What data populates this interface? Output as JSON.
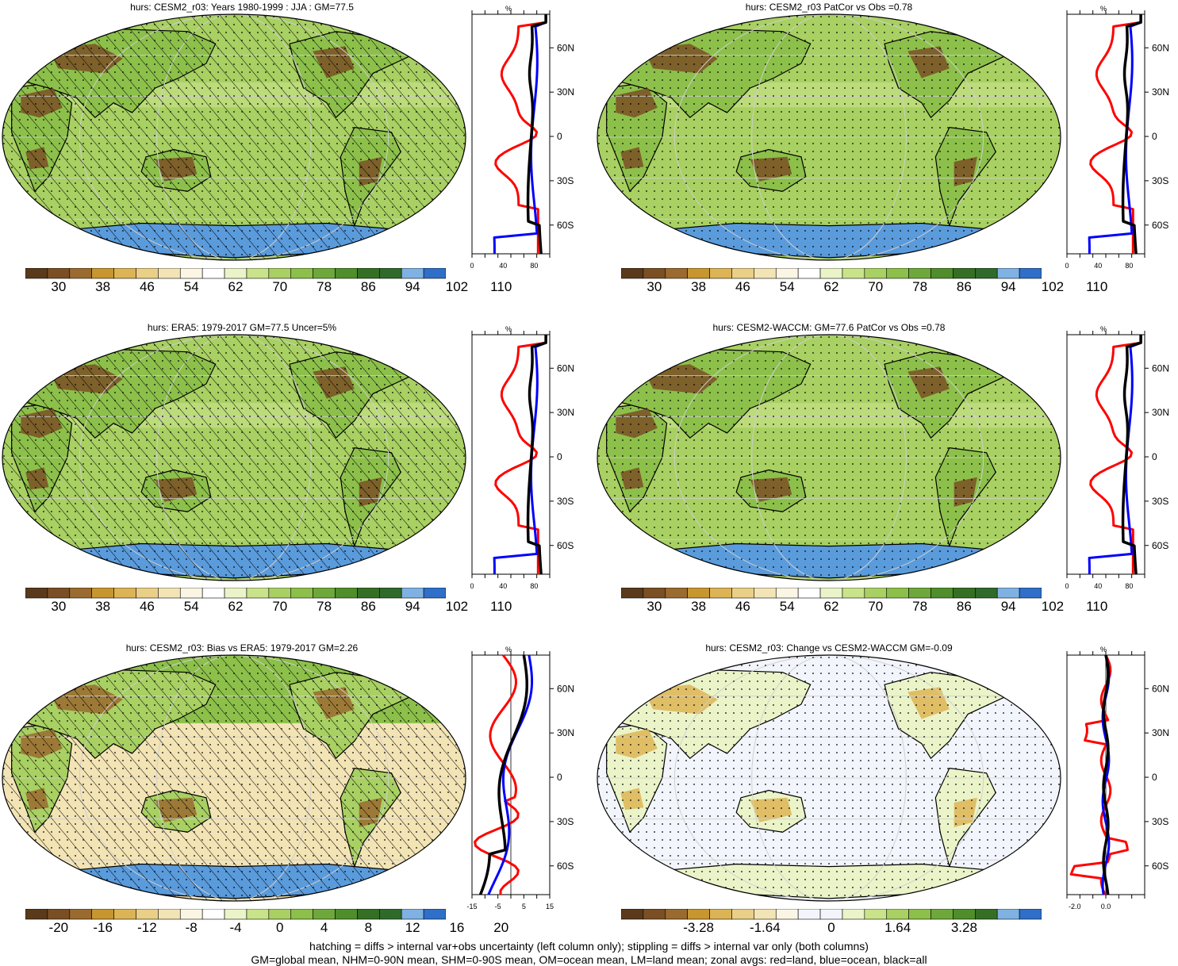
{
  "panels": [
    {
      "id": "p1",
      "title": "hurs: CESM2_r03: Years 1980-1999 : JJA : GM=77.5",
      "kind": "abs",
      "hatch": true,
      "colorbar_labels": [
        "30",
        "38",
        "46",
        "54",
        "62",
        "70",
        "78",
        "86",
        "94",
        "102",
        "110"
      ],
      "zonal": {
        "xlim": [
          0,
          100
        ],
        "xticks": [
          "0",
          "40",
          "80"
        ],
        "unit": "%",
        "lat_ticks": [
          "60N",
          "30N",
          "0",
          "30S",
          "60S"
        ]
      }
    },
    {
      "id": "p2",
      "title": "hurs: CESM2_r03 PatCor vs Obs =0.78",
      "kind": "abs",
      "hatch": false,
      "colorbar_labels": [
        "30",
        "38",
        "46",
        "54",
        "62",
        "70",
        "78",
        "86",
        "94",
        "102",
        "110"
      ],
      "zonal": {
        "xlim": [
          0,
          100
        ],
        "xticks": [
          "0",
          "40",
          "80"
        ],
        "unit": "%",
        "lat_ticks": [
          "60N",
          "30N",
          "0",
          "30S",
          "60S"
        ]
      }
    },
    {
      "id": "p3",
      "title": "hurs: ERA5: 1979-2017 GM=77.5 Uncer=5%",
      "kind": "abs",
      "hatch": true,
      "colorbar_labels": [
        "30",
        "38",
        "46",
        "54",
        "62",
        "70",
        "78",
        "86",
        "94",
        "102",
        "110"
      ],
      "zonal": {
        "xlim": [
          0,
          100
        ],
        "xticks": [
          "0",
          "40",
          "80"
        ],
        "unit": "%",
        "lat_ticks": [
          "60N",
          "30N",
          "0",
          "30S",
          "60S"
        ]
      }
    },
    {
      "id": "p4",
      "title": "hurs: CESM2-WACCM: GM=77.6 PatCor vs Obs =0.78",
      "kind": "abs",
      "hatch": false,
      "colorbar_labels": [
        "30",
        "38",
        "46",
        "54",
        "62",
        "70",
        "78",
        "86",
        "94",
        "102",
        "110"
      ],
      "zonal": {
        "xlim": [
          0,
          100
        ],
        "xticks": [
          "0",
          "40",
          "80"
        ],
        "unit": "%",
        "lat_ticks": [
          "60N",
          "30N",
          "0",
          "30S",
          "60S"
        ]
      }
    },
    {
      "id": "p5",
      "title": "hurs: CESM2_r03: Bias vs ERA5: 1979-2017 GM=2.26",
      "kind": "diff",
      "hatch": true,
      "colorbar_labels": [
        "-20",
        "-16",
        "-12",
        "-8",
        "-4",
        "0",
        "4",
        "8",
        "12",
        "16",
        "20"
      ],
      "zonal": {
        "xlim": [
          -15,
          15
        ],
        "xticks": [
          "-15",
          "-5",
          "5",
          "15"
        ],
        "unit": "%",
        "lat_ticks": [
          "60N",
          "30N",
          "0",
          "30S",
          "60S"
        ]
      }
    },
    {
      "id": "p6",
      "title": "hurs: CESM2_r03: Change vs CESM2-WACCM GM=-0.09",
      "kind": "change",
      "hatch": false,
      "colorbar_labels": [
        "-3.28",
        "-1.64",
        "0",
        "1.64",
        "3.28"
      ],
      "zonal": {
        "xlim": [
          -2.5,
          2.5
        ],
        "xticks": [
          "-2.0",
          "0.0"
        ],
        "unit": "%",
        "lat_ticks": [
          "60N",
          "30N",
          "0",
          "30S",
          "60S"
        ]
      }
    }
  ],
  "colors": {
    "abs": [
      "#5a3a1a",
      "#7a4f24",
      "#9a6a2f",
      "#c7962e",
      "#ddb455",
      "#eacf86",
      "#f3e4b5",
      "#fbf6e4",
      "#ffffff",
      "#eaf4c8",
      "#c9e38a",
      "#a8d062",
      "#8cc04a",
      "#6ea83a",
      "#4f8e2a",
      "#356f24",
      "#2f6a2a",
      "#7fb2e3",
      "#2f6fc9"
    ],
    "diff": [
      "#5a3a1a",
      "#7a4f24",
      "#9a6a2f",
      "#c7962e",
      "#ddb455",
      "#eacf86",
      "#f3e4b5",
      "#fbf6e4",
      "#ffffff",
      "#eaf4c8",
      "#c9e38a",
      "#a8d062",
      "#8cc04a",
      "#6ea83a",
      "#4f8e2a",
      "#356f24",
      "#2f6a2a",
      "#7fb2e3",
      "#2f6fc9"
    ],
    "change": [
      "#5a3a1a",
      "#7a4f24",
      "#9a6a2f",
      "#c7962e",
      "#ddb455",
      "#eacf86",
      "#f3e4b5",
      "#fbf6e4",
      "#f2f5fb",
      "#f2f5fb",
      "#eaf4c8",
      "#c9e38a",
      "#a8d062",
      "#8cc04a",
      "#6ea83a",
      "#4f8e2a",
      "#356f24",
      "#7fb2e3",
      "#2f6fc9"
    ],
    "ocean_abs": "#a8d062",
    "ocean_diff": "#f3e4b5",
    "ocean_change": "#f2f5fb",
    "land_red": "#ff0000",
    "ocean_blue": "#0000ff",
    "all_black": "#000000"
  },
  "footer": {
    "line1": "hatching = diffs > internal var+obs uncertainty (left column only); stippling = diffs > internal var only (both columns)",
    "line2": "GM=global mean, NHM=0-90N mean, SHM=0-90S mean, OM=ocean mean, LM=land mean; zonal avgs: red=land, blue=ocean, black=all"
  }
}
